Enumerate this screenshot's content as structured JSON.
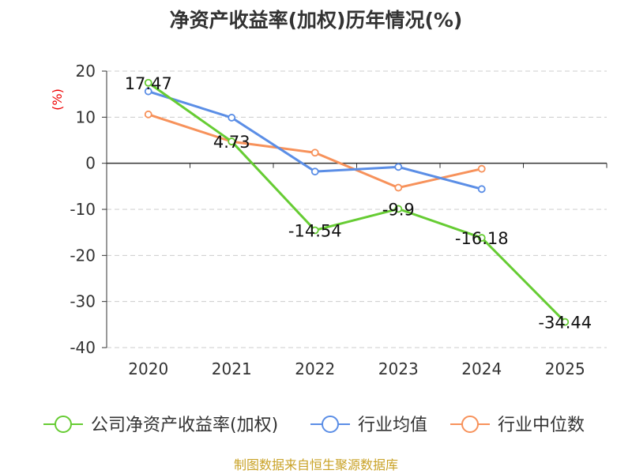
{
  "chart_data": {
    "type": "line",
    "title": "净资产收益率(加权)历年情况(%)",
    "ylabel": "(%)",
    "xlabel": "",
    "categories": [
      "2020",
      "2021",
      "2022",
      "2023",
      "2024",
      "2025"
    ],
    "ylim": [
      -40,
      20
    ],
    "yticks": [
      20,
      10,
      0,
      -10,
      -20,
      -30,
      -40
    ],
    "grid": true,
    "legend_position": "bottom",
    "series": [
      {
        "name": "公司净资产收益率(加权)",
        "color": "#66cc33",
        "values": [
          17.47,
          4.73,
          -14.54,
          -9.9,
          -16.18,
          -34.44
        ],
        "labels": [
          "17.47",
          "4.73",
          "-14.54",
          "-9.9",
          "-16.18",
          "-34.44"
        ]
      },
      {
        "name": "行业均值",
        "color": "#5b8ee6",
        "values": [
          15.6,
          9.9,
          -1.8,
          -0.8,
          -5.6,
          null
        ]
      },
      {
        "name": "行业中位数",
        "color": "#f7925b",
        "values": [
          10.6,
          4.7,
          2.3,
          -5.3,
          -1.2,
          null
        ]
      }
    ]
  },
  "source_note": "制图数据来自恒生聚源数据库"
}
